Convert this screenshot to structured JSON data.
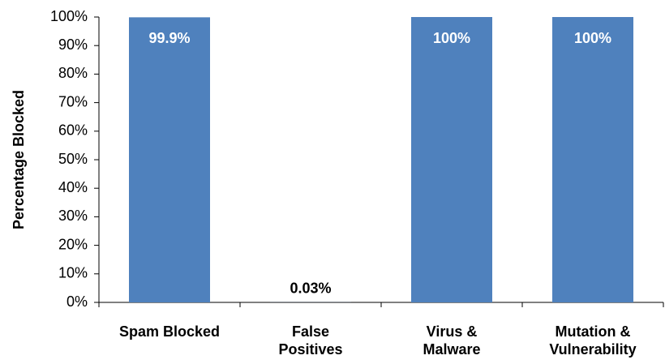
{
  "chart_data": {
    "type": "bar",
    "y_label": "Percentage  Blocked",
    "categories": [
      "Spam Blocked",
      "False\nPositives",
      "Virus &\nMalware",
      "Mutation &\nVulnerability"
    ],
    "values": [
      99.9,
      0.03,
      100,
      100
    ],
    "value_labels": [
      "99.9%",
      "0.03%",
      "100%",
      "100%"
    ],
    "color": "#4f81bd",
    "ylim": [
      0,
      100
    ],
    "yticks": [
      {
        "value": 0,
        "label": "0%"
      },
      {
        "value": 10,
        "label": "10%"
      },
      {
        "value": 20,
        "label": "20%"
      },
      {
        "value": 30,
        "label": "30%"
      },
      {
        "value": 40,
        "label": "40%"
      },
      {
        "value": 50,
        "label": "50%"
      },
      {
        "value": 60,
        "label": "60%"
      },
      {
        "value": 70,
        "label": "70%"
      },
      {
        "value": 80,
        "label": "80%"
      },
      {
        "value": 90,
        "label": "90%"
      },
      {
        "value": 100,
        "label": "100%"
      }
    ],
    "grid": false
  }
}
